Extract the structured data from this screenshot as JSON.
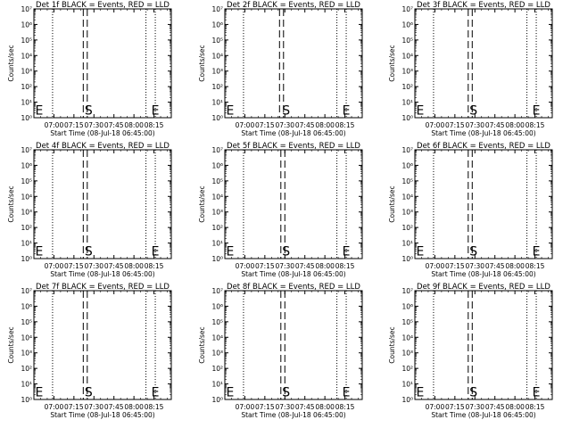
{
  "chart_data": [
    {
      "type": "line",
      "title": "Det 1f BLACK = Events, RED = LLD",
      "ylabel": "Counts/sec",
      "xlabel": "Start Time (08-Jul-18 06:45:00)",
      "y_scale": "log",
      "ylim": [
        1,
        10000000
      ],
      "y_ticks": [
        "10⁰",
        "10¹",
        "10²",
        "10³",
        "10⁴",
        "10⁵",
        "10⁶",
        "10⁷"
      ],
      "x_ticks": [
        "07:00",
        "07:15",
        "07:30",
        "07:45",
        "08:00",
        "08:15"
      ],
      "x_range": [
        "06:45",
        "08:28"
      ],
      "vlines": {
        "dotted": [
          "06:59",
          "08:09",
          "08:16"
        ],
        "dashed": [
          "07:22",
          "07:25"
        ]
      },
      "markers": [
        {
          "label": "E",
          "t": "06:46"
        },
        {
          "label": "S",
          "t": "07:23"
        },
        {
          "label": "E",
          "t": "08:13"
        }
      ],
      "series": []
    },
    {
      "type": "line",
      "title": "Det 2f BLACK = Events, RED = LLD",
      "ylabel": "Counts/sec",
      "xlabel": "Start Time (08-Jul-18 06:45:00)",
      "y_scale": "log",
      "ylim": [
        1,
        10000000
      ],
      "y_ticks": [
        "10⁰",
        "10¹",
        "10²",
        "10³",
        "10⁴",
        "10⁵",
        "10⁶",
        "10⁷"
      ],
      "x_ticks": [
        "07:00",
        "07:15",
        "07:30",
        "07:45",
        "08:00",
        "08:15"
      ],
      "x_range": [
        "06:45",
        "08:28"
      ],
      "vlines": {
        "dotted": [
          "06:59",
          "08:09",
          "08:16"
        ],
        "dashed": [
          "07:26",
          "07:29"
        ]
      },
      "markers": [
        {
          "label": "E",
          "t": "06:46"
        },
        {
          "label": "S",
          "t": "07:28"
        },
        {
          "label": "E",
          "t": "08:13"
        }
      ],
      "series": []
    },
    {
      "type": "line",
      "title": "Det 3f BLACK = Events, RED = LLD",
      "ylabel": "Counts/sec",
      "xlabel": "Start Time (08-Jul-18 06:45:00)",
      "y_scale": "log",
      "ylim": [
        1,
        10000000
      ],
      "y_ticks": [
        "10⁰",
        "10¹",
        "10²",
        "10³",
        "10⁴",
        "10⁵",
        "10⁶",
        "10⁷"
      ],
      "x_ticks": [
        "07:00",
        "07:15",
        "07:30",
        "07:45",
        "08:00",
        "08:15"
      ],
      "x_range": [
        "06:45",
        "08:28"
      ],
      "vlines": {
        "dotted": [
          "06:59",
          "08:09",
          "08:16"
        ],
        "dashed": [
          "07:25",
          "07:28"
        ]
      },
      "markers": [
        {
          "label": "E",
          "t": "06:46"
        },
        {
          "label": "S",
          "t": "07:26"
        },
        {
          "label": "E",
          "t": "08:13"
        }
      ],
      "series": []
    },
    {
      "type": "line",
      "title": "Det 4f BLACK = Events, RED = LLD",
      "ylabel": "Counts/sec",
      "xlabel": "Start Time (08-Jul-18 06:45:00)",
      "y_scale": "log",
      "ylim": [
        1,
        10000000
      ],
      "y_ticks": [
        "10⁰",
        "10¹",
        "10²",
        "10³",
        "10⁴",
        "10⁵",
        "10⁶",
        "10⁷"
      ],
      "x_ticks": [
        "07:00",
        "07:15",
        "07:30",
        "07:45",
        "08:00",
        "08:15"
      ],
      "x_range": [
        "06:45",
        "08:28"
      ],
      "vlines": {
        "dotted": [
          "06:59",
          "08:09",
          "08:16"
        ],
        "dashed": [
          "07:22",
          "07:25"
        ]
      },
      "markers": [
        {
          "label": "E",
          "t": "06:46"
        },
        {
          "label": "S",
          "t": "07:23"
        },
        {
          "label": "E",
          "t": "08:13"
        }
      ],
      "series": []
    },
    {
      "type": "line",
      "title": "Det 5f BLACK = Events, RED = LLD",
      "ylabel": "Counts/sec",
      "xlabel": "Start Time (08-Jul-18 06:45:00)",
      "y_scale": "log",
      "ylim": [
        1,
        10000000
      ],
      "y_ticks": [
        "10⁰",
        "10¹",
        "10²",
        "10³",
        "10⁴",
        "10⁵",
        "10⁶",
        "10⁷"
      ],
      "x_ticks": [
        "07:00",
        "07:15",
        "07:30",
        "07:45",
        "08:00",
        "08:15"
      ],
      "x_range": [
        "06:45",
        "08:28"
      ],
      "vlines": {
        "dotted": [
          "06:59",
          "08:09",
          "08:16"
        ],
        "dashed": [
          "07:27",
          "07:30"
        ]
      },
      "markers": [
        {
          "label": "E",
          "t": "06:46"
        },
        {
          "label": "S",
          "t": "07:28"
        },
        {
          "label": "E",
          "t": "08:13"
        }
      ],
      "series": []
    },
    {
      "type": "line",
      "title": "Det 6f BLACK = Events, RED = LLD",
      "ylabel": "Counts/sec",
      "xlabel": "Start Time (08-Jul-18 06:45:00)",
      "y_scale": "log",
      "ylim": [
        1,
        10000000
      ],
      "y_ticks": [
        "10⁰",
        "10¹",
        "10²",
        "10³",
        "10⁴",
        "10⁵",
        "10⁶",
        "10⁷"
      ],
      "x_ticks": [
        "07:00",
        "07:15",
        "07:30",
        "07:45",
        "08:00",
        "08:15"
      ],
      "x_range": [
        "06:45",
        "08:28"
      ],
      "vlines": {
        "dotted": [
          "06:59",
          "08:09",
          "08:16"
        ],
        "dashed": [
          "07:25",
          "07:28"
        ]
      },
      "markers": [
        {
          "label": "E",
          "t": "06:46"
        },
        {
          "label": "S",
          "t": "07:26"
        },
        {
          "label": "E",
          "t": "08:13"
        }
      ],
      "series": []
    },
    {
      "type": "line",
      "title": "Det 7f BLACK = Events, RED = LLD",
      "ylabel": "Counts/sec",
      "xlabel": "Start Time (08-Jul-18 06:45:00)",
      "y_scale": "log",
      "ylim": [
        1,
        10000000
      ],
      "y_ticks": [
        "10⁰",
        "10¹",
        "10²",
        "10³",
        "10⁴",
        "10⁵",
        "10⁶",
        "10⁷"
      ],
      "x_ticks": [
        "07:00",
        "07:15",
        "07:30",
        "07:45",
        "08:00",
        "08:15"
      ],
      "x_range": [
        "06:45",
        "08:28"
      ],
      "vlines": {
        "dotted": [
          "06:59",
          "08:09",
          "08:16"
        ],
        "dashed": [
          "07:22",
          "07:25"
        ]
      },
      "markers": [
        {
          "label": "E",
          "t": "06:46"
        },
        {
          "label": "S",
          "t": "07:23"
        },
        {
          "label": "E",
          "t": "08:13"
        }
      ],
      "series": []
    },
    {
      "type": "line",
      "title": "Det 8f BLACK = Events, RED = LLD",
      "ylabel": "Counts/sec",
      "xlabel": "Start Time (08-Jul-18 06:45:00)",
      "y_scale": "log",
      "ylim": [
        1,
        10000000
      ],
      "y_ticks": [
        "10⁰",
        "10¹",
        "10²",
        "10³",
        "10⁴",
        "10⁵",
        "10⁶",
        "10⁷"
      ],
      "x_ticks": [
        "07:00",
        "07:15",
        "07:30",
        "07:45",
        "08:00",
        "08:15"
      ],
      "x_range": [
        "06:45",
        "08:28"
      ],
      "vlines": {
        "dotted": [
          "06:59",
          "08:09",
          "08:16"
        ],
        "dashed": [
          "07:27",
          "07:30"
        ]
      },
      "markers": [
        {
          "label": "E",
          "t": "06:46"
        },
        {
          "label": "S",
          "t": "07:28"
        },
        {
          "label": "E",
          "t": "08:13"
        }
      ],
      "series": []
    },
    {
      "type": "line",
      "title": "Det 9f BLACK = Events, RED = LLD",
      "ylabel": "Counts/sec",
      "xlabel": "Start Time (08-Jul-18 06:45:00)",
      "y_scale": "log",
      "ylim": [
        1,
        10000000
      ],
      "y_ticks": [
        "10⁰",
        "10¹",
        "10²",
        "10³",
        "10⁴",
        "10⁵",
        "10⁶",
        "10⁷"
      ],
      "x_ticks": [
        "07:00",
        "07:15",
        "07:30",
        "07:45",
        "08:00",
        "08:15"
      ],
      "x_range": [
        "06:45",
        "08:28"
      ],
      "vlines": {
        "dotted": [
          "06:59",
          "08:09",
          "08:16"
        ],
        "dashed": [
          "07:25",
          "07:28"
        ]
      },
      "markers": [
        {
          "label": "E",
          "t": "06:46"
        },
        {
          "label": "S",
          "t": "07:26"
        },
        {
          "label": "E",
          "t": "08:13"
        }
      ],
      "series": []
    }
  ]
}
